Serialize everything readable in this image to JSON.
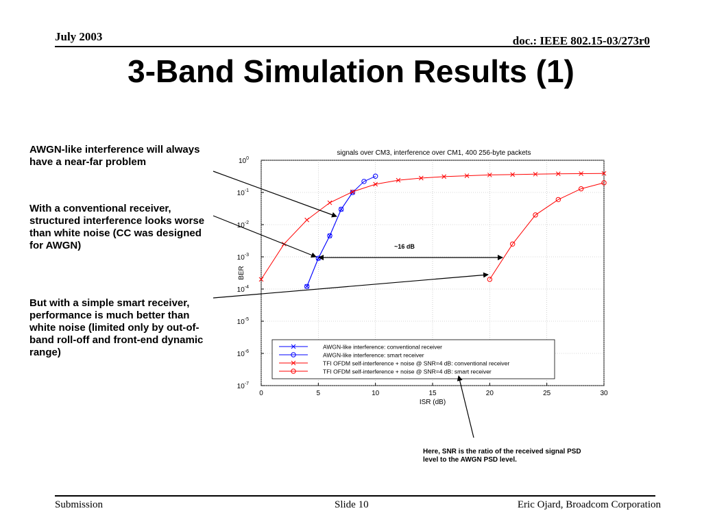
{
  "header": {
    "date": "July 2003",
    "doc_id": "doc.: IEEE 802.15-03/273r0"
  },
  "slide_title": "3-Band Simulation Results (1)",
  "notes": {
    "awgn": "AWGN-like interference will always have a near-far problem",
    "structured": "With a conventional receiver, structured interference looks worse than white noise (CC was designed for AWGN)",
    "smart": "But with a simple smart receiver, performance is much better than white noise (limited only by out-of-band roll-off and front-end dynamic range)",
    "snr": "Here, SNR is the ratio of the received signal PSD level to the AWGN PSD level."
  },
  "annotation_gap": "~16 dB",
  "footer": {
    "left": "Submission",
    "center": "Slide 10",
    "right": "Eric Ojard, Broadcom Corporation"
  },
  "colors": {
    "blue": "#0000ff",
    "red": "#ff0000",
    "grid": "#b0b0b0"
  },
  "chart_data": {
    "type": "line",
    "title": "signals over CM3, interference over CM1, 400 256-byte packets",
    "xlabel": "ISR (dB)",
    "ylabel": "BER",
    "xlim": [
      0,
      30
    ],
    "ylim_log10": [
      -7,
      0
    ],
    "y_scale": "log",
    "grid": true,
    "legend_placement": "bottom-right",
    "x_ticks": [
      0,
      5,
      10,
      15,
      20,
      25,
      30
    ],
    "y_tick_exponents": [
      0,
      -1,
      -2,
      -3,
      -4,
      -5,
      -6,
      -7
    ],
    "series": [
      {
        "name": "AWGN-like interference: conventional receiver",
        "color": "#0000ff",
        "marker": "x",
        "x": [
          4,
          5,
          6,
          7,
          8
        ],
        "y": [
          0.00012,
          0.0009,
          0.0045,
          0.03,
          0.1
        ]
      },
      {
        "name": "AWGN-like interference: smart receiver",
        "color": "#0000ff",
        "marker": "o",
        "x": [
          4,
          5,
          6,
          7,
          8,
          9,
          10
        ],
        "y": [
          0.00012,
          0.0009,
          0.0045,
          0.03,
          0.1,
          0.22,
          0.32
        ]
      },
      {
        "name": "TFI OFDM self-interference + noise @ SNR=4 dB: conventional receiver",
        "color": "#ff0000",
        "marker": "x",
        "x": [
          0,
          2,
          4,
          6,
          8,
          10,
          12,
          14,
          16,
          18,
          20,
          22,
          24,
          26,
          28,
          30
        ],
        "y": [
          0.0002,
          0.0025,
          0.014,
          0.048,
          0.105,
          0.18,
          0.24,
          0.28,
          0.31,
          0.33,
          0.35,
          0.36,
          0.37,
          0.38,
          0.385,
          0.39
        ]
      },
      {
        "name": "TFI OFDM self-interference + noise @ SNR=4 dB: smart receiver",
        "color": "#ff0000",
        "marker": "o",
        "x": [
          20,
          22,
          24,
          26,
          28,
          30
        ],
        "y": [
          0.0002,
          0.0025,
          0.02,
          0.06,
          0.13,
          0.2
        ]
      }
    ]
  }
}
